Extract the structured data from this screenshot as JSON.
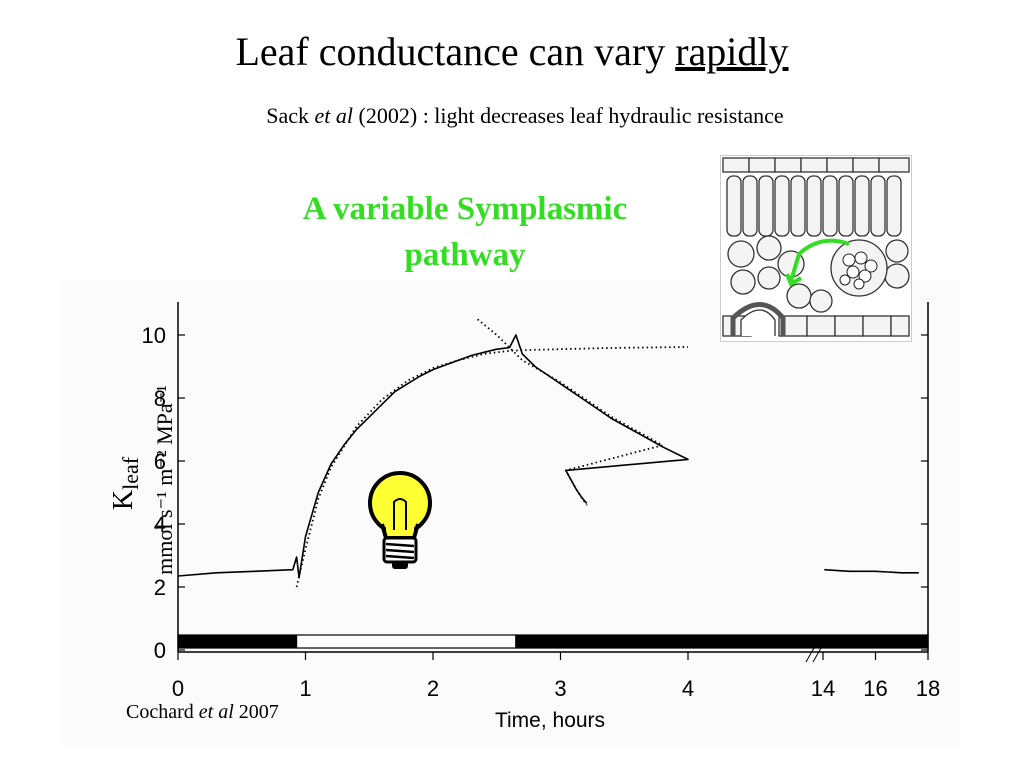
{
  "slide": {
    "title_main": "Leaf conductance can vary ",
    "title_emph": "rapidly",
    "subtitle_a": "Sack ",
    "subtitle_b": "et al",
    "subtitle_c": " (2002) : light decreases leaf hydraulic resistance",
    "pathway_line1": "A variable Symplasmic",
    "pathway_line2": "pathway",
    "credit_a": "Cochard ",
    "credit_b": "et al",
    "credit_c": " 2007"
  },
  "colors": {
    "pathway_text": "#33dd22",
    "bulb_glass": "#ffff33",
    "inset_arrow": "#33dd22"
  },
  "icons": {
    "bulb": "light-bulb-icon",
    "inset": "leaf-cross-section-image"
  },
  "chart_data": {
    "type": "line",
    "title": "",
    "ylabel_k": "K",
    "ylabel_sub": "leaf",
    "ylabel_units": "mmol s⁻¹ m⁻² MPa⁻¹",
    "xlabel": "Time, hours",
    "ylim": [
      0,
      10.5
    ],
    "y_ticks": [
      0,
      2,
      4,
      6,
      8,
      10
    ],
    "x_ticks": [
      "0",
      "1",
      "2",
      "3",
      "4",
      "14",
      "16",
      "18"
    ],
    "x_tick_values": [
      0,
      1,
      2,
      3,
      4,
      14,
      16,
      18
    ],
    "x_break": "4–14 hours (axis broken)",
    "light_periods": [
      {
        "from": 0,
        "to": 0.93,
        "state": "dark"
      },
      {
        "from": 0.93,
        "to": 2.65,
        "state": "light"
      },
      {
        "from": 2.65,
        "to": 18,
        "state": "dark"
      }
    ],
    "series": [
      {
        "style": "solid",
        "x": [
          0,
          0.3,
          0.6,
          0.9,
          0.93,
          0.95,
          1.0,
          1.1,
          1.2,
          1.3,
          1.4,
          1.5,
          1.6,
          1.7,
          1.8,
          1.9,
          2.0,
          2.1,
          2.2,
          2.3,
          2.4,
          2.5,
          2.6,
          2.65,
          2.7,
          2.8,
          3.0,
          3.2,
          3.4,
          3.6,
          3.8,
          4.0,
          4.2,
          4.4,
          4.6,
          4.8,
          5.0
        ],
        "y": [
          2.35,
          2.45,
          2.5,
          2.55,
          2.95,
          2.3,
          3.6,
          5.0,
          5.9,
          6.5,
          7.0,
          7.4,
          7.8,
          8.2,
          8.45,
          8.7,
          8.9,
          9.05,
          9.2,
          9.35,
          9.45,
          9.55,
          9.6,
          10.0,
          9.4,
          9.0,
          8.45,
          7.9,
          7.35,
          6.9,
          6.45,
          6.05,
          5.7,
          5.4,
          5.1,
          4.85,
          4.65
        ]
      },
      {
        "style": "solid",
        "x": [
          14.05,
          15,
          16,
          17,
          17.65
        ],
        "y": [
          2.55,
          2.5,
          2.5,
          2.45,
          2.45
        ]
      },
      {
        "style": "dotted",
        "x": [
          0.93,
          1.0,
          1.1,
          1.2,
          1.4,
          1.6,
          1.8,
          2.0,
          2.2,
          2.4,
          2.6,
          2.8,
          3.0,
          3.3,
          3.6,
          4.0
        ],
        "y": [
          2.0,
          3.2,
          4.8,
          5.8,
          7.1,
          7.95,
          8.55,
          8.95,
          9.2,
          9.4,
          9.5,
          9.53,
          9.55,
          9.58,
          9.6,
          9.62
        ]
      },
      {
        "style": "dotted",
        "x": [
          2.35,
          2.5,
          2.7,
          3.0,
          3.4,
          3.8,
          4.2,
          4.6,
          4.8,
          5.0
        ],
        "y": [
          10.5,
          10.0,
          9.2,
          8.5,
          7.4,
          6.5,
          5.7,
          5.1,
          4.85,
          4.6
        ]
      }
    ]
  }
}
